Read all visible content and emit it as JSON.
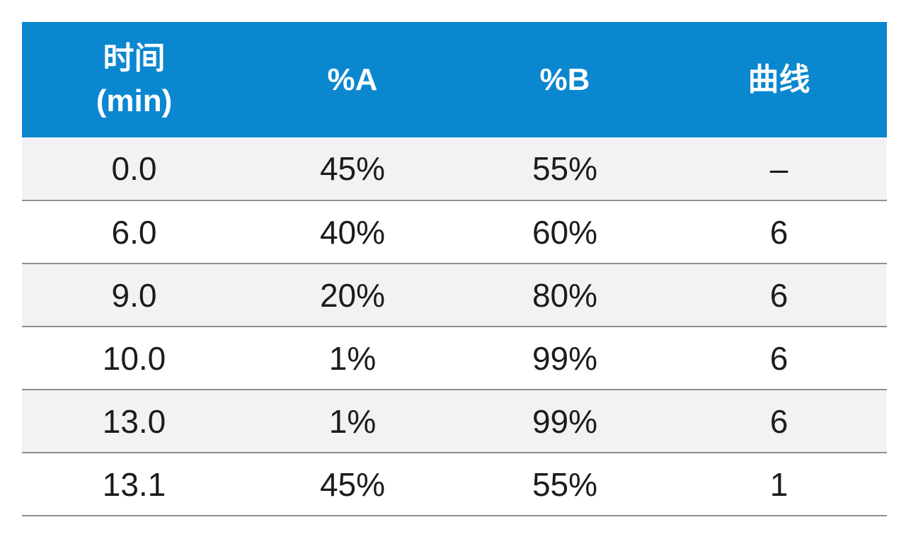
{
  "table": {
    "headers": {
      "time_line1": "时间",
      "time_line2": "(min)",
      "a": "%A",
      "b": "%B",
      "curve": "曲线"
    },
    "rows": [
      {
        "time": "0.0",
        "a": "45%",
        "b": "55%",
        "curve": "–"
      },
      {
        "time": "6.0",
        "a": "40%",
        "b": "60%",
        "curve": "6"
      },
      {
        "time": "9.0",
        "a": "20%",
        "b": "80%",
        "curve": "6"
      },
      {
        "time": "10.0",
        "a": "1%",
        "b": "99%",
        "curve": "6"
      },
      {
        "time": "13.0",
        "a": "1%",
        "b": "99%",
        "curve": "6"
      },
      {
        "time": "13.1",
        "a": "45%",
        "b": "55%",
        "curve": "1"
      }
    ]
  },
  "colors": {
    "header_bg": "#0a87cf",
    "header_text": "#ffffff",
    "row_shaded": "#f2f2f4",
    "row_plain": "#ffffff",
    "divider": "#8e8f93"
  }
}
